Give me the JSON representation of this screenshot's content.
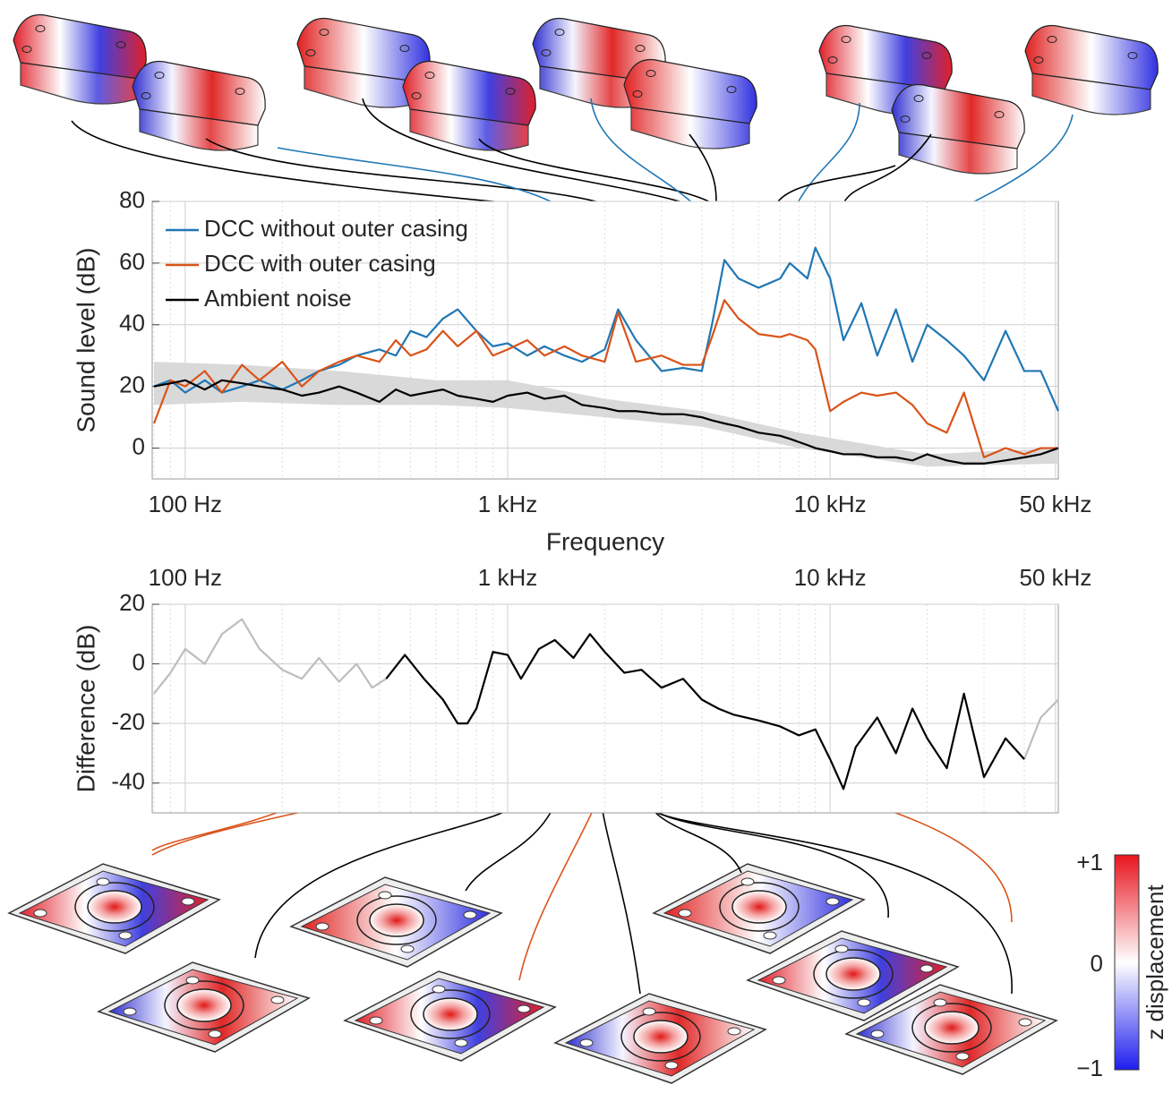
{
  "chart_data": [
    {
      "type": "line",
      "ylabel": "Sound level (dB)",
      "xlabel": "Frequency",
      "xscale": "log",
      "grid": true,
      "legend": "upper left",
      "tick_side": "bottom",
      "xlim": [
        79,
        51000
      ],
      "ylim": [
        -10,
        80
      ],
      "xticks": [
        {
          "value": 100,
          "label": "100 Hz"
        },
        {
          "value": 1000,
          "label": "1 kHz"
        },
        {
          "value": 10000,
          "label": "10 kHz"
        },
        {
          "value": 50000,
          "label": "50 kHz"
        }
      ],
      "xminorticks": [
        80,
        90,
        200,
        300,
        400,
        500,
        600,
        700,
        800,
        900,
        2000,
        3000,
        4000,
        5000,
        6000,
        7000,
        8000,
        9000,
        20000,
        30000,
        40000
      ],
      "yticks": [
        0,
        20,
        40,
        60,
        80
      ],
      "x": [
        80,
        90,
        100,
        115,
        130,
        150,
        170,
        200,
        230,
        260,
        300,
        340,
        400,
        450,
        500,
        560,
        630,
        700,
        800,
        900,
        1000,
        1150,
        1300,
        1500,
        1700,
        2000,
        2200,
        2500,
        3000,
        3500,
        4000,
        4300,
        4700,
        5200,
        6000,
        7000,
        7500,
        8500,
        9000,
        10000,
        11000,
        12500,
        14000,
        16000,
        18000,
        20000,
        23000,
        26000,
        30000,
        35000,
        40000,
        45000,
        51000
      ],
      "band": {
        "color": "#d9d9d9",
        "x": [
          80,
          150,
          300,
          600,
          1000,
          2000,
          4000,
          8000,
          20000,
          51000
        ],
        "lower": [
          14,
          15,
          14,
          14,
          13,
          10,
          7,
          0,
          -6,
          -5
        ],
        "upper": [
          28,
          27,
          25,
          22,
          22,
          16,
          12,
          5,
          -2,
          0
        ]
      },
      "series": [
        {
          "name": "DCC without outer casing",
          "color": "#1f77b4",
          "values": [
            20,
            22,
            18,
            22,
            18,
            20,
            22,
            19,
            22,
            25,
            27,
            30,
            32,
            30,
            38,
            36,
            42,
            45,
            38,
            33,
            34,
            30,
            33,
            30,
            28,
            32,
            45,
            35,
            25,
            26,
            25,
            40,
            61,
            55,
            52,
            55,
            60,
            55,
            65,
            55,
            35,
            47,
            30,
            45,
            28,
            40,
            35,
            30,
            22,
            38,
            25,
            25,
            12
          ]
        },
        {
          "name": "DCC with outer casing",
          "color": "#d95319",
          "values": [
            8,
            22,
            20,
            25,
            18,
            27,
            22,
            28,
            20,
            25,
            28,
            30,
            28,
            35,
            30,
            32,
            38,
            33,
            38,
            30,
            32,
            35,
            30,
            33,
            30,
            28,
            44,
            28,
            30,
            27,
            27,
            36,
            48,
            42,
            37,
            36,
            37,
            35,
            32,
            12,
            15,
            18,
            17,
            18,
            14,
            8,
            5,
            18,
            -3,
            0,
            -2,
            0,
            0
          ]
        },
        {
          "name": "Ambient noise",
          "color": "#000000",
          "values": [
            20,
            21,
            22,
            19,
            22,
            21,
            20,
            19,
            17,
            18,
            20,
            18,
            15,
            19,
            17,
            18,
            19,
            17,
            16,
            15,
            17,
            18,
            16,
            17,
            14,
            13,
            12,
            12,
            11,
            11,
            10,
            9,
            8,
            7,
            5,
            4,
            3,
            1,
            0,
            -1,
            -2,
            -2,
            -3,
            -3,
            -4,
            -2,
            -4,
            -5,
            -5,
            -4,
            -3,
            -2,
            0
          ]
        }
      ]
    },
    {
      "type": "line",
      "ylabel": "Difference (dB)",
      "xscale": "log",
      "grid": true,
      "tick_side": "top",
      "xlim": [
        79,
        51000
      ],
      "ylim": [
        -50,
        20
      ],
      "xticks": [
        {
          "value": 100,
          "label": "100 Hz"
        },
        {
          "value": 1000,
          "label": "1 kHz"
        },
        {
          "value": 10000,
          "label": "10 kHz"
        },
        {
          "value": 50000,
          "label": "50 kHz"
        }
      ],
      "xminorticks": [
        80,
        90,
        200,
        300,
        400,
        500,
        600,
        700,
        800,
        900,
        2000,
        3000,
        4000,
        5000,
        6000,
        7000,
        8000,
        9000,
        20000,
        30000,
        40000
      ],
      "yticks": [
        -40,
        -20,
        0,
        20
      ],
      "x": [
        80,
        90,
        100,
        115,
        130,
        150,
        170,
        200,
        230,
        260,
        300,
        340,
        380,
        420,
        480,
        550,
        630,
        700,
        750,
        800,
        900,
        1000,
        1100,
        1250,
        1400,
        1600,
        1800,
        2000,
        2300,
        2600,
        3000,
        3500,
        4000,
        4500,
        5000,
        6000,
        7000,
        8000,
        9000,
        10000,
        11000,
        12000,
        14000,
        16000,
        18000,
        20000,
        23000,
        26000,
        30000,
        35000,
        40000,
        45000,
        51000
      ],
      "series": [
        {
          "color": "#bdbdbd",
          "values": [
            -10,
            -3,
            5,
            0,
            10,
            15,
            5,
            -2,
            -5,
            2,
            -6,
            0,
            -8,
            -5,
            null,
            null,
            null,
            null,
            null,
            null,
            null,
            null,
            null,
            null,
            null,
            null,
            null,
            null,
            null,
            null,
            null,
            null,
            null,
            null,
            null,
            null,
            null,
            null,
            null,
            null,
            null,
            null,
            null,
            null,
            null,
            null,
            null,
            null,
            null,
            null,
            -32,
            -18,
            -12
          ]
        },
        {
          "color": "#000000",
          "values": [
            null,
            null,
            null,
            null,
            null,
            null,
            null,
            null,
            null,
            null,
            null,
            null,
            null,
            -5,
            3,
            -5,
            -12,
            -20,
            -20,
            -15,
            4,
            3,
            -5,
            5,
            8,
            2,
            10,
            4,
            -3,
            -2,
            -8,
            -5,
            -12,
            -15,
            -17,
            -19,
            -21,
            -24,
            -22,
            -32,
            -42,
            -28,
            -18,
            -30,
            -15,
            -25,
            -35,
            -10,
            -38,
            -25,
            -32,
            null,
            null
          ]
        }
      ]
    }
  ],
  "colorbar": {
    "title": "z displacement",
    "labels": [
      "+1",
      "0",
      "−1"
    ]
  }
}
